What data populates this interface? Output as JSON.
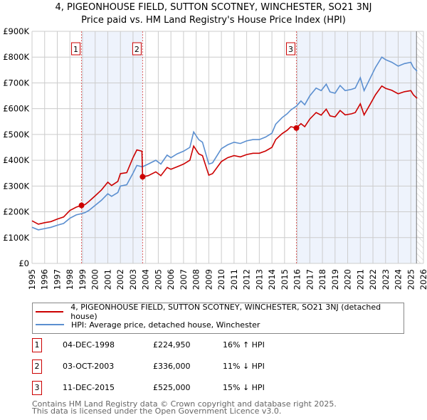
{
  "chart_data": {
    "type": "line",
    "title": "4, PIGEONHOUSE FIELD, SUTTON SCOTNEY, WINCHESTER, SO21 3NJ",
    "subtitle": "Price paid vs. HM Land Registry's House Price Index (HPI)",
    "xlim": [
      1995,
      2026
    ],
    "ylim": [
      0,
      900000
    ],
    "y_ticks": [
      0,
      100000,
      200000,
      300000,
      400000,
      500000,
      600000,
      700000,
      800000,
      900000
    ],
    "y_tick_labels": [
      "£0",
      "£100K",
      "£200K",
      "£300K",
      "£400K",
      "£500K",
      "£600K",
      "£700K",
      "£800K",
      "£900K"
    ],
    "x_ticks": [
      1995,
      1996,
      1997,
      1998,
      1999,
      2000,
      2001,
      2002,
      2003,
      2004,
      2005,
      2006,
      2007,
      2008,
      2009,
      2010,
      2011,
      2012,
      2013,
      2014,
      2015,
      2016,
      2017,
      2018,
      2019,
      2020,
      2021,
      2022,
      2023,
      2024,
      2025,
      2026
    ],
    "grid": true,
    "shaded_ranges": [
      [
        1998.92,
        2003.76
      ],
      [
        2015.94,
        2025.45
      ]
    ],
    "hatched_range": [
      2025.45,
      2026
    ],
    "x": [
      1995.0,
      1995.5,
      1996,
      1996.5,
      1997,
      1997.5,
      1998,
      1998.5,
      1998.92,
      1999.2,
      1999.5,
      2000,
      2000.5,
      2001,
      2001.3,
      2001.8,
      2002,
      2002.5,
      2003,
      2003.3,
      2003.7,
      2003.76,
      2004.2,
      2004.8,
      2005.2,
      2005.7,
      2006,
      2006.5,
      2007,
      2007.5,
      2007.8,
      2008.2,
      2008.5,
      2009,
      2009.3,
      2010,
      2010.5,
      2011,
      2011.5,
      2012,
      2012.5,
      2013,
      2013.5,
      2014,
      2014.3,
      2014.8,
      2015.2,
      2015.5,
      2015.94,
      2016.3,
      2016.6,
      2017,
      2017.5,
      2017.9,
      2018.3,
      2018.6,
      2019,
      2019.4,
      2019.8,
      2020.3,
      2020.6,
      2021,
      2021.3,
      2021.8,
      2022.2,
      2022.7,
      2023,
      2023.5,
      2024,
      2024.5,
      2025,
      2025.2,
      2025.5
    ],
    "series": [
      {
        "name": "4, PIGEONHOUSE FIELD, SUTTON SCOTNEY, WINCHESTER, SO21 3NJ (detached house)",
        "color": "#cc0000",
        "values": [
          165000,
          152000,
          158000,
          162000,
          172000,
          180000,
          205000,
          218000,
          225000,
          228000,
          240000,
          262000,
          285000,
          315000,
          302000,
          318000,
          348000,
          352000,
          410000,
          440000,
          435000,
          336000,
          340000,
          355000,
          340000,
          372000,
          365000,
          375000,
          385000,
          400000,
          455000,
          425000,
          418000,
          342000,
          348000,
          395000,
          410000,
          418000,
          413000,
          422000,
          427000,
          427000,
          436000,
          450000,
          480000,
          503000,
          516000,
          530000,
          525000,
          542000,
          530000,
          560000,
          585000,
          575000,
          598000,
          572000,
          568000,
          593000,
          576000,
          580000,
          585000,
          619000,
          576000,
          619000,
          654000,
          688000,
          679000,
          671000,
          658000,
          666000,
          670000,
          654000,
          640000
        ]
      },
      {
        "name": "HPI: Average price, detached house, Winchester",
        "color": "#5b8fd0",
        "values": [
          140000,
          130000,
          135000,
          140000,
          148000,
          155000,
          175000,
          188000,
          193000,
          197000,
          205000,
          225000,
          245000,
          270000,
          260000,
          275000,
          300000,
          305000,
          350000,
          380000,
          375000,
          375000,
          385000,
          400000,
          385000,
          420000,
          410000,
          425000,
          435000,
          450000,
          510000,
          480000,
          470000,
          385000,
          390000,
          445000,
          460000,
          470000,
          465000,
          475000,
          480000,
          480000,
          490000,
          505000,
          540000,
          565000,
          580000,
          595000,
          610000,
          630000,
          615000,
          650000,
          680000,
          670000,
          695000,
          665000,
          660000,
          690000,
          670000,
          675000,
          680000,
          720000,
          670000,
          720000,
          760000,
          800000,
          790000,
          780000,
          765000,
          775000,
          780000,
          760000,
          745000
        ]
      }
    ],
    "sales": [
      {
        "label": "1",
        "x": 1998.92,
        "price": 224950
      },
      {
        "label": "2",
        "x": 2003.76,
        "price": 336000
      },
      {
        "label": "3",
        "x": 2015.94,
        "price": 525000
      }
    ]
  },
  "legend": {
    "property": "4, PIGEONHOUSE FIELD, SUTTON SCOTNEY, WINCHESTER, SO21 3NJ (detached house)",
    "hpi": "HPI: Average price, detached house, Winchester"
  },
  "transactions": [
    {
      "num": "1",
      "date": "04-DEC-1998",
      "price": "£224,950",
      "hpi": "16% ↑ HPI"
    },
    {
      "num": "2",
      "date": "03-OCT-2003",
      "price": "£336,000",
      "hpi": "11% ↓ HPI"
    },
    {
      "num": "3",
      "date": "11-DEC-2015",
      "price": "£525,000",
      "hpi": "15% ↓ HPI"
    }
  ],
  "footer": {
    "line1": "Contains HM Land Registry data © Crown copyright and database right 2025.",
    "line2": "This data is licensed under the Open Government Licence v3.0."
  }
}
